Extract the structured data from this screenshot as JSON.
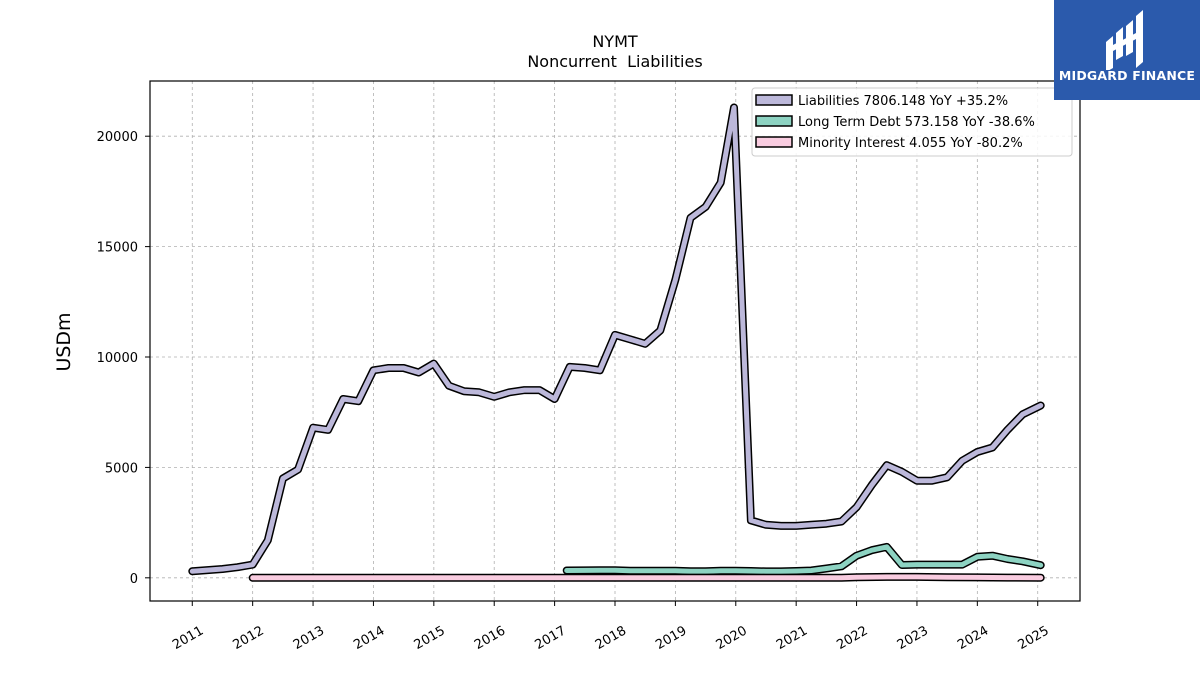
{
  "chart_data": {
    "type": "line",
    "title": "NYMT",
    "subtitle": "Noncurrent  Liabilities",
    "ylabel": "USDm",
    "xlabel": "",
    "ylim": [
      -1050,
      22500
    ],
    "xlim": [
      2010.3,
      2025.7
    ],
    "yticks": [
      0,
      5000,
      10000,
      15000,
      20000
    ],
    "xticks": [
      2011,
      2012,
      2013,
      2014,
      2015,
      2016,
      2017,
      2018,
      2019,
      2020,
      2021,
      2022,
      2023,
      2024,
      2025
    ],
    "grid": true,
    "legend_position": "top-right",
    "series": [
      {
        "name": "Liabilities",
        "legend_label": "Liabilities  7806.148 YoY +35.2%",
        "color": "#bcb8da",
        "points": [
          [
            2011.0,
            300
          ],
          [
            2011.5,
            400
          ],
          [
            2011.75,
            480
          ],
          [
            2012.0,
            600
          ],
          [
            2012.25,
            1700
          ],
          [
            2012.5,
            4500
          ],
          [
            2012.75,
            4900
          ],
          [
            2013.0,
            6800
          ],
          [
            2013.25,
            6700
          ],
          [
            2013.5,
            8100
          ],
          [
            2013.75,
            8000
          ],
          [
            2014.0,
            9400
          ],
          [
            2014.25,
            9500
          ],
          [
            2014.5,
            9500
          ],
          [
            2014.75,
            9300
          ],
          [
            2015.0,
            9700
          ],
          [
            2015.25,
            8700
          ],
          [
            2015.5,
            8450
          ],
          [
            2015.75,
            8400
          ],
          [
            2016.0,
            8200
          ],
          [
            2016.25,
            8400
          ],
          [
            2016.5,
            8500
          ],
          [
            2016.75,
            8500
          ],
          [
            2017.0,
            8100
          ],
          [
            2017.25,
            9550
          ],
          [
            2017.5,
            9500
          ],
          [
            2017.75,
            9400
          ],
          [
            2018.0,
            11000
          ],
          [
            2018.25,
            10800
          ],
          [
            2018.5,
            10600
          ],
          [
            2018.75,
            11200
          ],
          [
            2019.0,
            13500
          ],
          [
            2019.25,
            16300
          ],
          [
            2019.5,
            16800
          ],
          [
            2019.75,
            17900
          ],
          [
            2019.97,
            21300
          ],
          [
            2020.25,
            2600
          ],
          [
            2020.5,
            2400
          ],
          [
            2020.75,
            2350
          ],
          [
            2021.0,
            2350
          ],
          [
            2021.25,
            2400
          ],
          [
            2021.5,
            2450
          ],
          [
            2021.75,
            2550
          ],
          [
            2022.0,
            3200
          ],
          [
            2022.25,
            4200
          ],
          [
            2022.5,
            5100
          ],
          [
            2022.75,
            4800
          ],
          [
            2023.0,
            4400
          ],
          [
            2023.25,
            4400
          ],
          [
            2023.5,
            4550
          ],
          [
            2023.75,
            5300
          ],
          [
            2024.0,
            5700
          ],
          [
            2024.25,
            5900
          ],
          [
            2024.5,
            6700
          ],
          [
            2024.75,
            7400
          ],
          [
            2025.05,
            7806
          ]
        ]
      },
      {
        "name": "Long Term Debt",
        "legend_label": "Long Term Debt  573.158 YoY -38.6%",
        "color": "#8dd3c2",
        "points": [
          [
            2017.2,
            330
          ],
          [
            2017.5,
            335
          ],
          [
            2017.75,
            340
          ],
          [
            2018.0,
            340
          ],
          [
            2018.25,
            320
          ],
          [
            2018.5,
            320
          ],
          [
            2018.75,
            320
          ],
          [
            2019.0,
            320
          ],
          [
            2019.25,
            300
          ],
          [
            2019.5,
            300
          ],
          [
            2019.75,
            320
          ],
          [
            2020.0,
            320
          ],
          [
            2020.25,
            310
          ],
          [
            2020.5,
            290
          ],
          [
            2020.75,
            290
          ],
          [
            2021.0,
            310
          ],
          [
            2021.25,
            330
          ],
          [
            2021.5,
            420
          ],
          [
            2021.75,
            520
          ],
          [
            2022.0,
            1000
          ],
          [
            2022.25,
            1250
          ],
          [
            2022.5,
            1400
          ],
          [
            2022.75,
            580
          ],
          [
            2023.0,
            600
          ],
          [
            2023.25,
            600
          ],
          [
            2023.5,
            600
          ],
          [
            2023.75,
            600
          ],
          [
            2024.0,
            950
          ],
          [
            2024.25,
            1000
          ],
          [
            2024.5,
            850
          ],
          [
            2024.75,
            750
          ],
          [
            2025.05,
            573
          ]
        ]
      },
      {
        "name": "Minority Interest",
        "legend_label": "Minority Interest  4.055 YoY -80.2%",
        "color": "#f9cce0",
        "points": [
          [
            2012.0,
            0
          ],
          [
            2013.0,
            0
          ],
          [
            2014.0,
            0
          ],
          [
            2015.0,
            0
          ],
          [
            2016.0,
            0
          ],
          [
            2017.0,
            5
          ],
          [
            2018.0,
            5
          ],
          [
            2019.0,
            5
          ],
          [
            2020.0,
            5
          ],
          [
            2021.0,
            5
          ],
          [
            2021.75,
            5
          ],
          [
            2022.0,
            30
          ],
          [
            2022.5,
            40
          ],
          [
            2023.0,
            40
          ],
          [
            2023.5,
            30
          ],
          [
            2024.0,
            20
          ],
          [
            2024.5,
            10
          ],
          [
            2025.05,
            4
          ]
        ]
      }
    ]
  },
  "logo": {
    "name": "MIDGARD FINANCE",
    "color": "#2b5aac"
  }
}
